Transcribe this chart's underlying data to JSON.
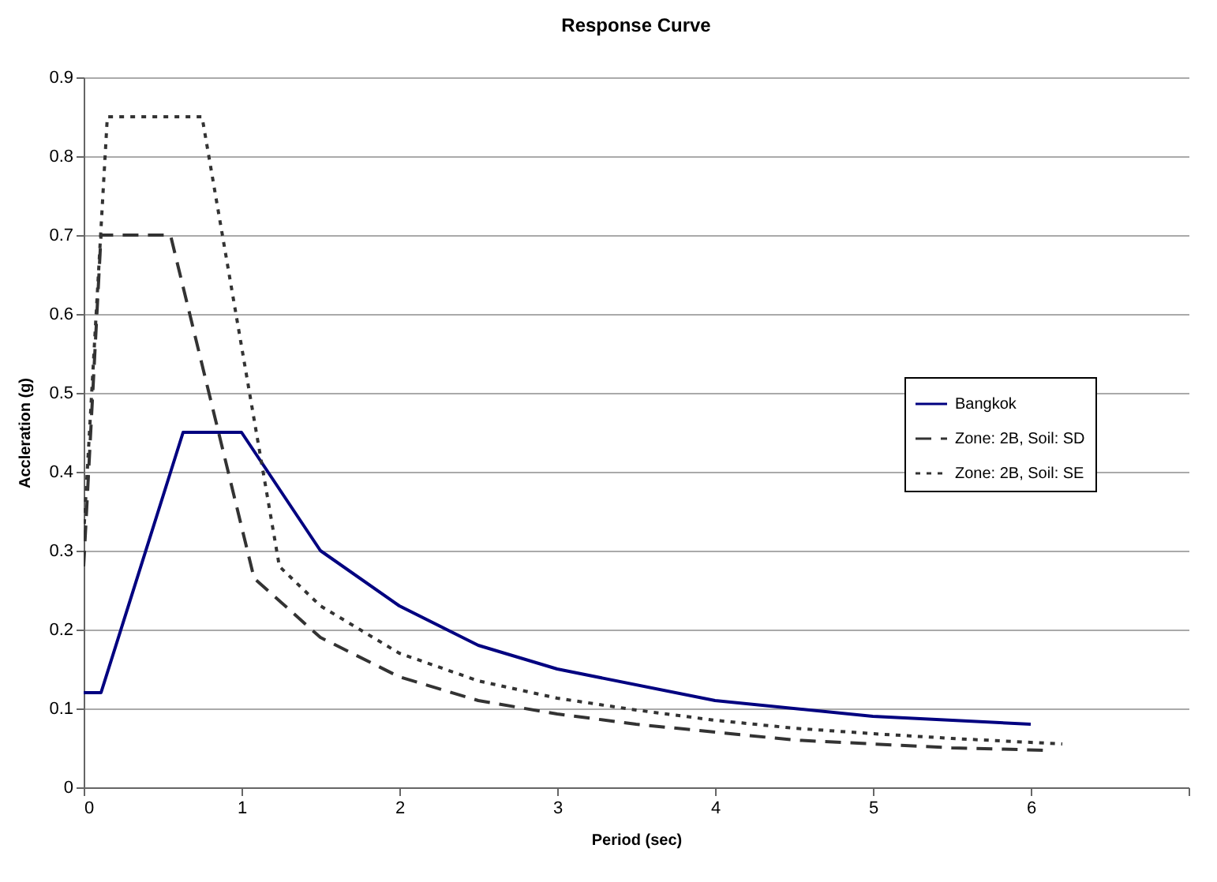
{
  "chart_data": {
    "type": "line",
    "title": "Response Curve",
    "xlabel": "Period (sec)",
    "ylabel": "Accleration (g)",
    "xlim": [
      0,
      7
    ],
    "xticks": [
      0,
      1,
      2,
      3,
      4,
      5,
      6,
      {
        "value": 7,
        "label": null
      }
    ],
    "ylim": [
      0,
      0.9
    ],
    "yticks": [
      0,
      0.1,
      0.2,
      0.3,
      0.4,
      0.5,
      0.6,
      0.7,
      0.8,
      0.9
    ],
    "grid": "y",
    "legend": "right",
    "marker": "none",
    "series": [
      {
        "name": "Bangkok",
        "color": "#000080",
        "line_style": "solid",
        "x": [
          0,
          0.11,
          0.63,
          1.0,
          1.5,
          2,
          2.5,
          3,
          4,
          5,
          6
        ],
        "values": [
          0.12,
          0.12,
          0.45,
          0.45,
          0.3,
          0.23,
          0.18,
          0.15,
          0.11,
          0.09,
          0.08
        ]
      },
      {
        "name": "Zone: 2B, Soil: SD",
        "color": "#333333",
        "line_style": "dashed",
        "x": [
          0,
          0.11,
          0.55,
          1.08,
          1.5,
          2,
          2.5,
          3,
          3.5,
          4,
          4.5,
          5,
          5.5,
          6.1
        ],
        "values": [
          0.28,
          0.7,
          0.7,
          0.265,
          0.19,
          0.14,
          0.11,
          0.093,
          0.08,
          0.07,
          0.06,
          0.055,
          0.05,
          0.047
        ]
      },
      {
        "name": "Zone: 2B, Soil: SE",
        "color": "#333333",
        "line_style": "dotted",
        "x": [
          0,
          0.15,
          0.75,
          1.24,
          1.5,
          2,
          2.5,
          3,
          3.5,
          4,
          4.5,
          5,
          5.5,
          6.2
        ],
        "values": [
          0.32,
          0.85,
          0.85,
          0.28,
          0.23,
          0.17,
          0.135,
          0.113,
          0.098,
          0.085,
          0.075,
          0.068,
          0.062,
          0.055
        ]
      }
    ]
  }
}
